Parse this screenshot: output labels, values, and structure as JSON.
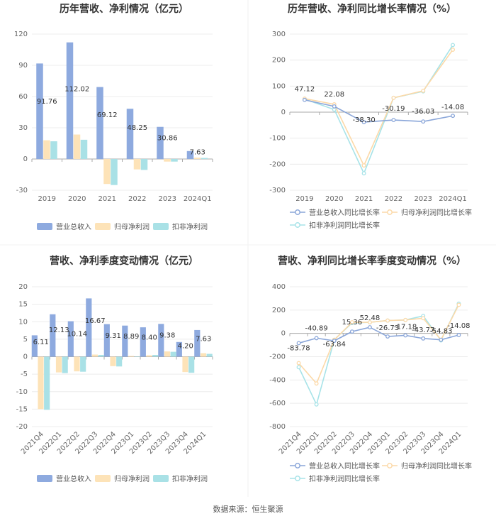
{
  "source": "数据来源：恒生聚源",
  "colors": {
    "revenue": "#8eaadf",
    "net_profit": "#fde3b8",
    "deducted_profit": "#a9e1e6",
    "growth_revenue_line": "#8aa6d9",
    "growth_net_line": "#fcd9a8",
    "growth_deducted_line": "#a7e3e8"
  },
  "chart_data": [
    {
      "id": "annual-bar",
      "type": "bar",
      "title": "历年营收、净利情况（亿元）",
      "categories": [
        "2019",
        "2020",
        "2021",
        "2022",
        "2023",
        "2024Q1"
      ],
      "ylim": [
        -30,
        120
      ],
      "yticks": [
        -30,
        0,
        30,
        60,
        90,
        120
      ],
      "series": [
        {
          "name": "营业总收入",
          "values": [
            91.76,
            112.02,
            69.12,
            48.25,
            30.86,
            7.63
          ]
        },
        {
          "name": "归母净利润",
          "values": [
            18.0,
            23.5,
            -24.0,
            -10.0,
            -2.5,
            1.3
          ]
        },
        {
          "name": "扣非净利润",
          "values": [
            17.0,
            18.5,
            -25.0,
            -10.5,
            -2.5,
            1.0
          ]
        }
      ],
      "data_labels": [
        "91.76",
        "112.02",
        "69.12",
        "48.25",
        "30.86",
        "7.63"
      ]
    },
    {
      "id": "annual-line",
      "type": "line",
      "title": "历年营收、净利同比增长率情况（%）",
      "categories": [
        "2019",
        "2020",
        "2021",
        "2022",
        "2023",
        "2024Q1"
      ],
      "ylim": [
        -300,
        300
      ],
      "yticks": [
        -300,
        -200,
        -100,
        0,
        100,
        200,
        300
      ],
      "series": [
        {
          "name": "营业总收入同比增长率",
          "values": [
            47.12,
            22.08,
            -38.3,
            -30.19,
            -36.03,
            -14.08
          ]
        },
        {
          "name": "归母净利润同比增长率",
          "values": [
            52,
            30,
            -205,
            55,
            82,
            240
          ]
        },
        {
          "name": "扣非净利润同比增长率",
          "values": [
            50,
            10,
            -235,
            55,
            80,
            258
          ]
        }
      ],
      "data_labels": [
        "47.12",
        "22.08",
        "-38.30",
        "-30.19",
        "-36.03",
        "-14.08"
      ]
    },
    {
      "id": "quarter-bar",
      "type": "bar",
      "title": "营收、净利季度变动情况（亿元）",
      "categories": [
        "2021Q4",
        "2022Q1",
        "2022Q2",
        "2022Q3",
        "2022Q4",
        "2023Q1",
        "2023Q2",
        "2023Q3",
        "2023Q4",
        "2024Q1"
      ],
      "ylim": [
        -20,
        20
      ],
      "yticks": [
        -20,
        -15,
        -10,
        -5,
        0,
        5,
        10,
        15,
        20
      ],
      "series": [
        {
          "name": "营业总收入",
          "values": [
            6.11,
            12.13,
            10.14,
            16.67,
            9.31,
            8.89,
            8.4,
            9.38,
            4.2,
            7.63
          ]
        },
        {
          "name": "归母净利润",
          "values": [
            -15.0,
            -4.5,
            -4.2,
            0.6,
            -2.7,
            0.2,
            0.4,
            1.5,
            -4.4,
            1.0
          ]
        },
        {
          "name": "扣非净利润",
          "values": [
            -15.2,
            -4.7,
            -4.3,
            0.5,
            -2.8,
            0.1,
            0.5,
            1.4,
            -4.6,
            0.8
          ]
        }
      ],
      "data_labels": [
        "6.11",
        "12.13",
        "10.14",
        "16.67",
        "9.31",
        "8.89",
        "8.40",
        "9.38",
        "4.20",
        "7.63"
      ]
    },
    {
      "id": "quarter-line",
      "type": "line",
      "title": "营收、净利同比增长率季度变动情况（%）",
      "categories": [
        "2021Q4",
        "2022Q1",
        "2022Q2",
        "2022Q3",
        "2022Q4",
        "2023Q1",
        "2023Q2",
        "2023Q3",
        "2023Q4",
        "2024Q1"
      ],
      "ylim": [
        -800,
        400
      ],
      "yticks": [
        -800,
        -600,
        -400,
        -200,
        0,
        200,
        400
      ],
      "series": [
        {
          "name": "营业总收入同比增长率",
          "values": [
            -83.78,
            -40.89,
            -63.84,
            15.36,
            52.48,
            -26.73,
            -17.18,
            -43.77,
            -54.83,
            -14.08
          ]
        },
        {
          "name": "归母净利润同比增长率",
          "values": [
            -255,
            -430,
            -55,
            95,
            95,
            110,
            115,
            130,
            -55,
            245
          ]
        },
        {
          "name": "扣非净利润同比增长率",
          "values": [
            -290,
            -610,
            -55,
            90,
            95,
            110,
            115,
            150,
            -60,
            255
          ]
        }
      ],
      "data_labels": [
        "-83.78",
        "-40.89",
        "-63.84",
        "15.36",
        "52.48",
        "-26.73",
        "-17.18",
        "-43.77",
        "-54.83",
        "-14.08"
      ]
    }
  ]
}
